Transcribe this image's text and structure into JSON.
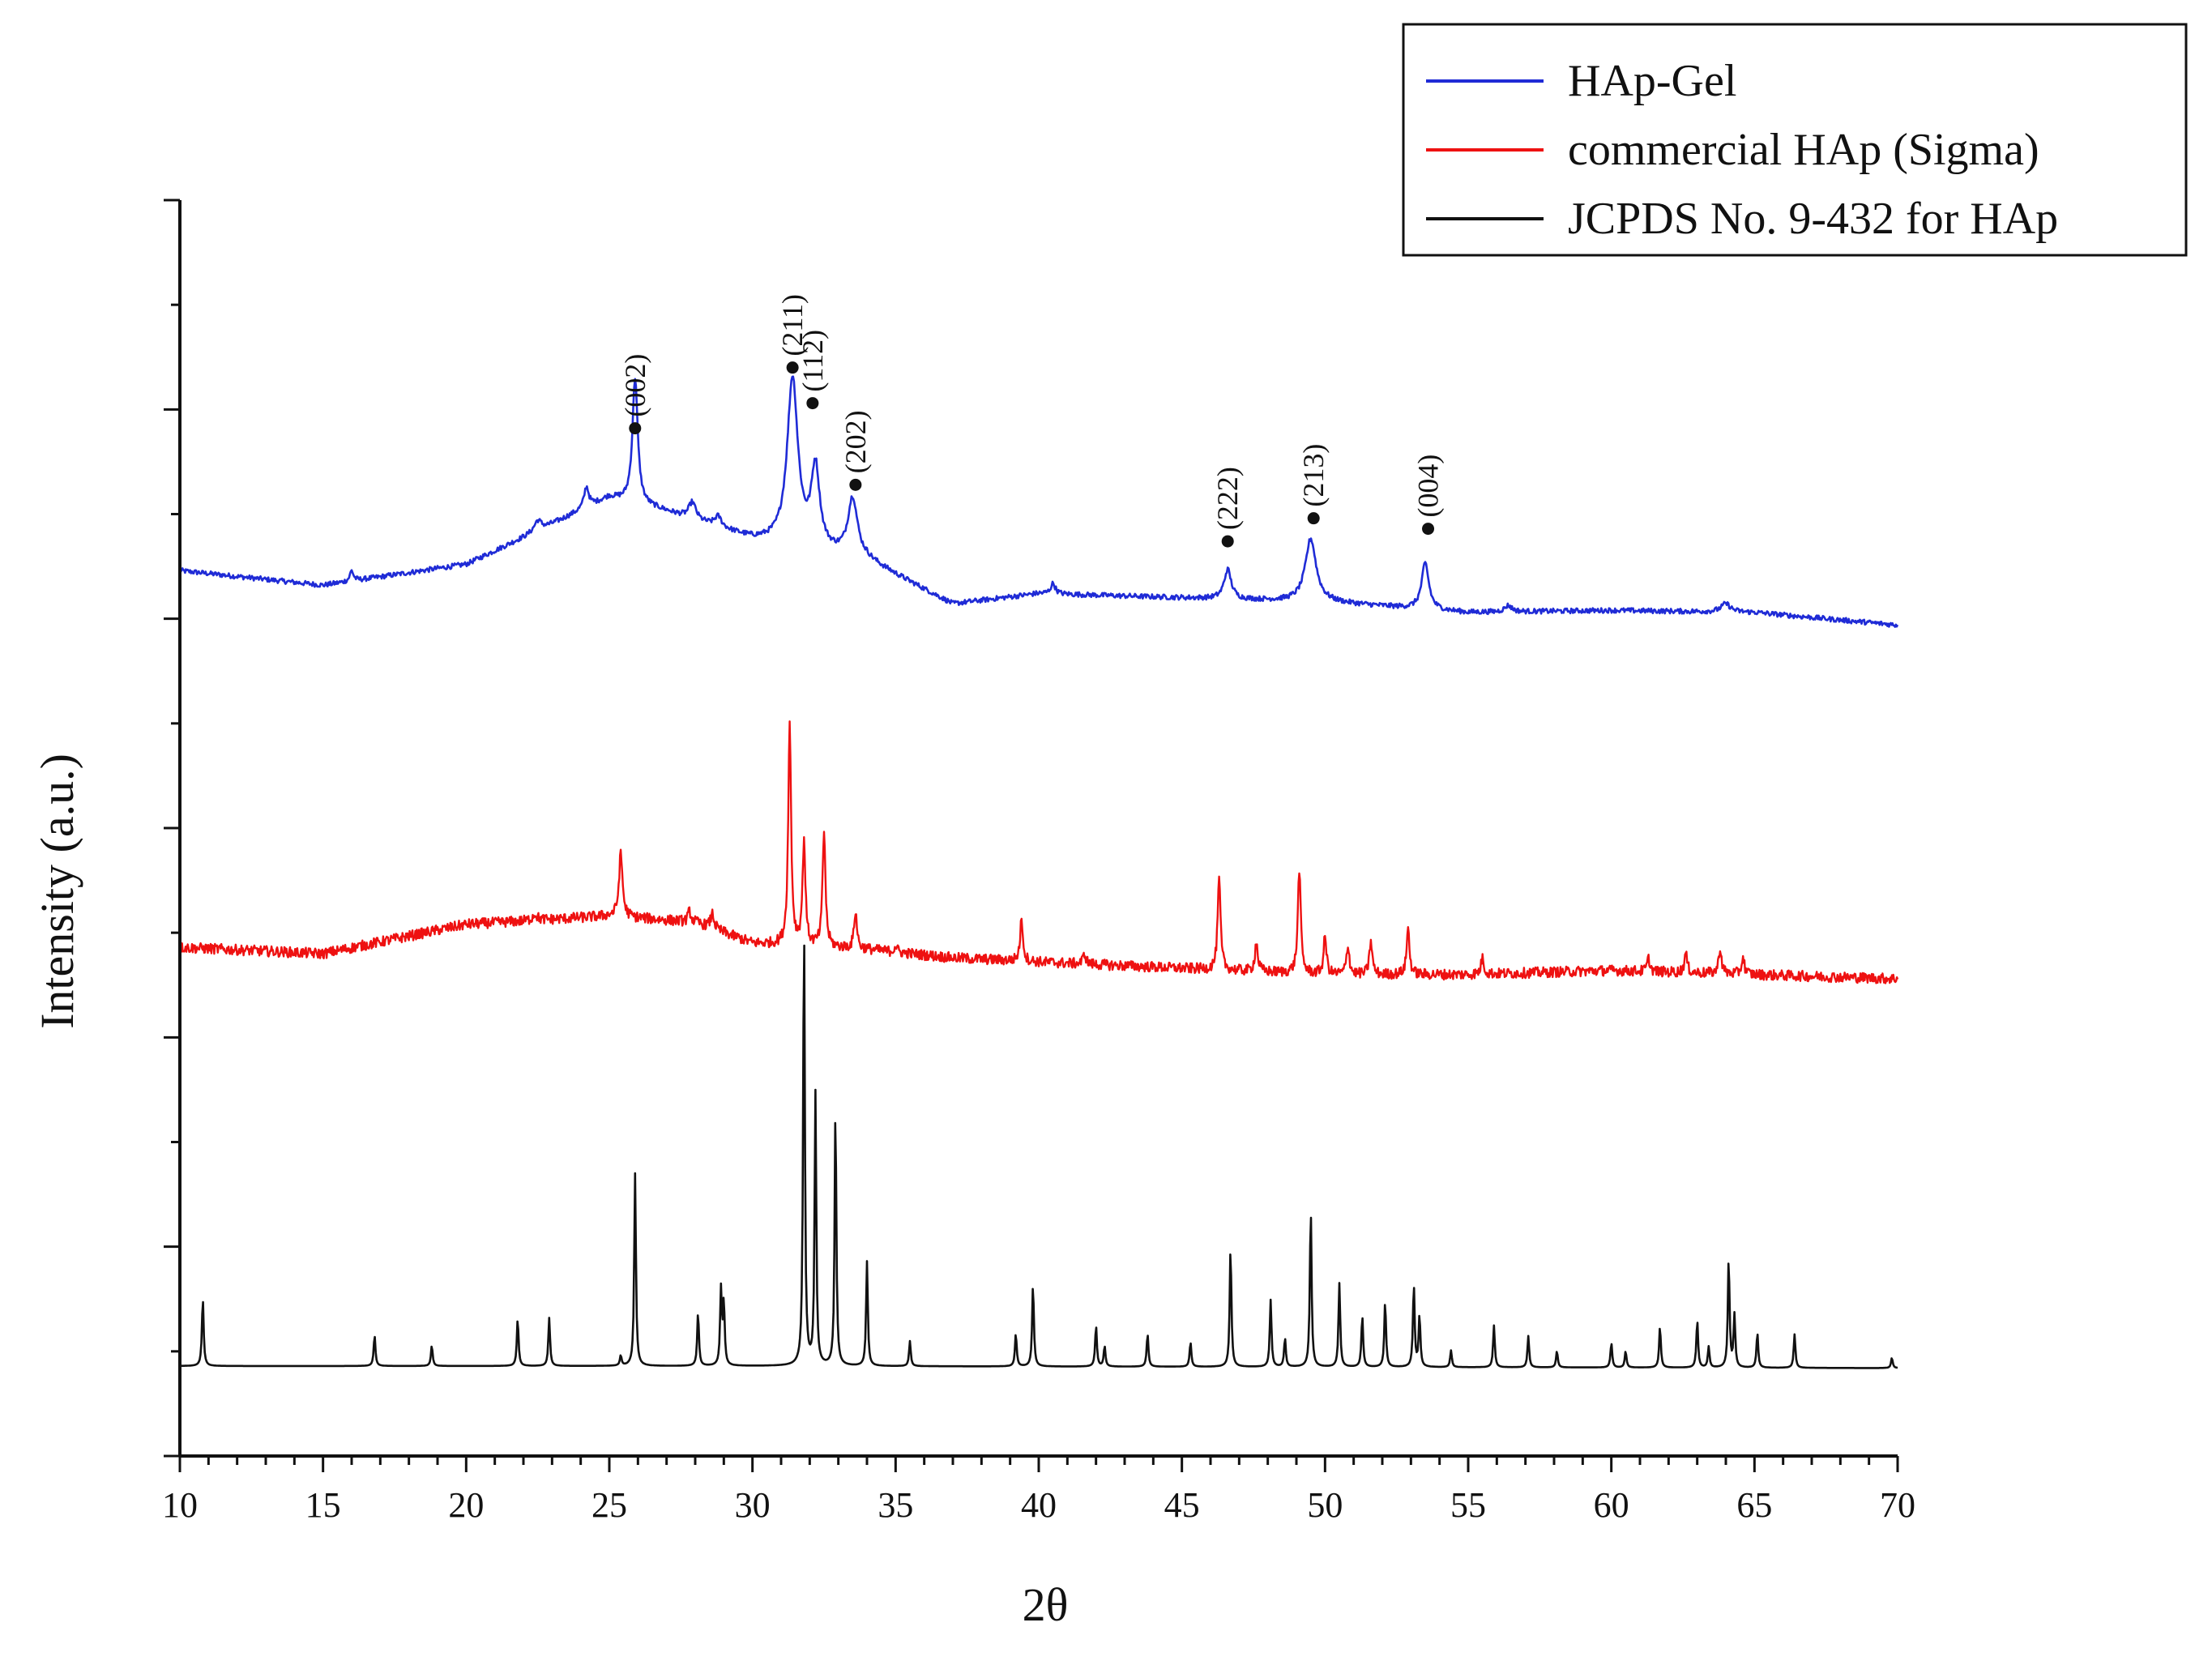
{
  "chart_data": {
    "type": "line",
    "title": "",
    "xlabel": "2θ",
    "ylabel": "Intensity (a.u.)",
    "xlim": [
      10,
      70
    ],
    "ylim": [
      0,
      6
    ],
    "x_ticks": [
      10,
      15,
      20,
      25,
      30,
      35,
      40,
      45,
      50,
      55,
      60,
      65,
      70
    ],
    "y_ticks_unlabeled": [
      0,
      1,
      2,
      3,
      4,
      5,
      6
    ],
    "grid": false,
    "legend_position": "top-right",
    "series": [
      {
        "name": "HAp-Gel",
        "color": "#1f2bd6",
        "baseline": [
          [
            10,
            4.23
          ],
          [
            15,
            4.16
          ],
          [
            20,
            4.26
          ],
          [
            25,
            4.58
          ],
          [
            26.8,
            4.52
          ],
          [
            30,
            4.38
          ],
          [
            34,
            4.28
          ],
          [
            37,
            4.07
          ],
          [
            40,
            4.12
          ],
          [
            45,
            4.1
          ],
          [
            50,
            4.08
          ],
          [
            55,
            4.03
          ],
          [
            60,
            4.04
          ],
          [
            65,
            4.03
          ],
          [
            70,
            3.97
          ]
        ],
        "peaks": [
          [
            16.0,
            0.05,
            0.15
          ],
          [
            22.5,
            0.05,
            0.3
          ],
          [
            24.2,
            0.1,
            0.2
          ],
          [
            25.9,
            0.6,
            0.22
          ],
          [
            27.9,
            0.08,
            0.3
          ],
          [
            28.8,
            0.05,
            0.3
          ],
          [
            31.4,
            0.8,
            0.45
          ],
          [
            32.2,
            0.38,
            0.35
          ],
          [
            33.5,
            0.28,
            0.4
          ],
          [
            40.5,
            0.05,
            0.2
          ],
          [
            46.6,
            0.14,
            0.3
          ],
          [
            49.5,
            0.3,
            0.45
          ],
          [
            53.5,
            0.22,
            0.3
          ],
          [
            56.4,
            0.03,
            0.3
          ],
          [
            64.0,
            0.04,
            0.4
          ]
        ],
        "noise": 0.012
      },
      {
        "name": "commercial HAp (Sigma)",
        "color": "#ee1111",
        "baseline": [
          [
            10,
            2.43
          ],
          [
            15,
            2.4
          ],
          [
            20,
            2.54
          ],
          [
            25,
            2.58
          ],
          [
            28,
            2.55
          ],
          [
            30,
            2.45
          ],
          [
            34,
            2.42
          ],
          [
            37,
            2.38
          ],
          [
            40,
            2.36
          ],
          [
            45,
            2.33
          ],
          [
            50,
            2.3
          ],
          [
            55,
            2.3
          ],
          [
            60,
            2.32
          ],
          [
            65,
            2.3
          ],
          [
            70,
            2.28
          ]
        ],
        "peaks": [
          [
            22.4,
            0.03,
            0.2
          ],
          [
            25.4,
            0.3,
            0.15
          ],
          [
            27.8,
            0.05,
            0.12
          ],
          [
            28.6,
            0.07,
            0.15
          ],
          [
            31.3,
            1.05,
            0.12
          ],
          [
            31.8,
            0.5,
            0.12
          ],
          [
            32.5,
            0.55,
            0.12
          ],
          [
            33.6,
            0.18,
            0.12
          ],
          [
            35.0,
            0.03,
            0.12
          ],
          [
            39.4,
            0.2,
            0.12
          ],
          [
            41.6,
            0.05,
            0.12
          ],
          [
            46.3,
            0.43,
            0.12
          ],
          [
            47.6,
            0.14,
            0.12
          ],
          [
            49.1,
            0.5,
            0.12
          ],
          [
            50.0,
            0.18,
            0.12
          ],
          [
            50.8,
            0.14,
            0.12
          ],
          [
            51.6,
            0.16,
            0.12
          ],
          [
            52.9,
            0.22,
            0.12
          ],
          [
            55.5,
            0.08,
            0.12
          ],
          [
            61.3,
            0.06,
            0.12
          ],
          [
            62.6,
            0.09,
            0.12
          ],
          [
            63.8,
            0.12,
            0.12
          ],
          [
            64.6,
            0.08,
            0.12
          ]
        ],
        "noise": 0.025
      },
      {
        "name": "JCPDS No. 9-432 for HAp",
        "color": "#111111",
        "baseline": [
          [
            10,
            0.43
          ],
          [
            30,
            0.43
          ],
          [
            70,
            0.42
          ]
        ],
        "peaks": [
          [
            10.8,
            0.33,
            0.07
          ],
          [
            16.8,
            0.15,
            0.07
          ],
          [
            18.8,
            0.1,
            0.07
          ],
          [
            21.8,
            0.23,
            0.07
          ],
          [
            22.9,
            0.23,
            0.07
          ],
          [
            25.4,
            0.05,
            0.07
          ],
          [
            25.9,
            0.92,
            0.07
          ],
          [
            28.1,
            0.26,
            0.07
          ],
          [
            28.9,
            0.36,
            0.07
          ],
          [
            29.0,
            0.3,
            0.07
          ],
          [
            31.8,
            2.16,
            0.07
          ],
          [
            32.2,
            1.3,
            0.07
          ],
          [
            32.9,
            1.25,
            0.07
          ],
          [
            34.0,
            0.5,
            0.07
          ],
          [
            35.5,
            0.12,
            0.07
          ],
          [
            39.2,
            0.16,
            0.07
          ],
          [
            39.8,
            0.4,
            0.07
          ],
          [
            42.0,
            0.2,
            0.07
          ],
          [
            42.3,
            0.1,
            0.07
          ],
          [
            43.8,
            0.16,
            0.07
          ],
          [
            45.3,
            0.12,
            0.07
          ],
          [
            46.7,
            0.58,
            0.07
          ],
          [
            48.1,
            0.32,
            0.07
          ],
          [
            48.6,
            0.14,
            0.07
          ],
          [
            49.5,
            0.77,
            0.07
          ],
          [
            50.5,
            0.4,
            0.07
          ],
          [
            51.3,
            0.25,
            0.07
          ],
          [
            52.1,
            0.32,
            0.07
          ],
          [
            53.1,
            0.4,
            0.07
          ],
          [
            53.3,
            0.25,
            0.07
          ],
          [
            54.4,
            0.08,
            0.07
          ],
          [
            55.9,
            0.2,
            0.07
          ],
          [
            57.1,
            0.15,
            0.07
          ],
          [
            58.1,
            0.08,
            0.07
          ],
          [
            60.0,
            0.12,
            0.07
          ],
          [
            60.5,
            0.08,
            0.07
          ],
          [
            61.7,
            0.2,
            0.07
          ],
          [
            63.0,
            0.23,
            0.07
          ],
          [
            63.4,
            0.1,
            0.07
          ],
          [
            64.1,
            0.53,
            0.07
          ],
          [
            64.3,
            0.25,
            0.07
          ],
          [
            65.1,
            0.17,
            0.07
          ],
          [
            66.4,
            0.16,
            0.07
          ],
          [
            69.8,
            0.05,
            0.07
          ]
        ],
        "noise": 0
      }
    ],
    "annotations": [
      {
        "label": "(002)",
        "x": 25.9,
        "y": 4.91
      },
      {
        "label": "(211)",
        "x": 31.4,
        "y": 5.2
      },
      {
        "label": "(112)",
        "x": 32.1,
        "y": 5.03
      },
      {
        "label": "(202)",
        "x": 33.6,
        "y": 4.64
      },
      {
        "label": "(222)",
        "x": 46.6,
        "y": 4.37
      },
      {
        "label": "(213)",
        "x": 49.6,
        "y": 4.48
      },
      {
        "label": "(004)",
        "x": 53.6,
        "y": 4.43
      }
    ]
  }
}
